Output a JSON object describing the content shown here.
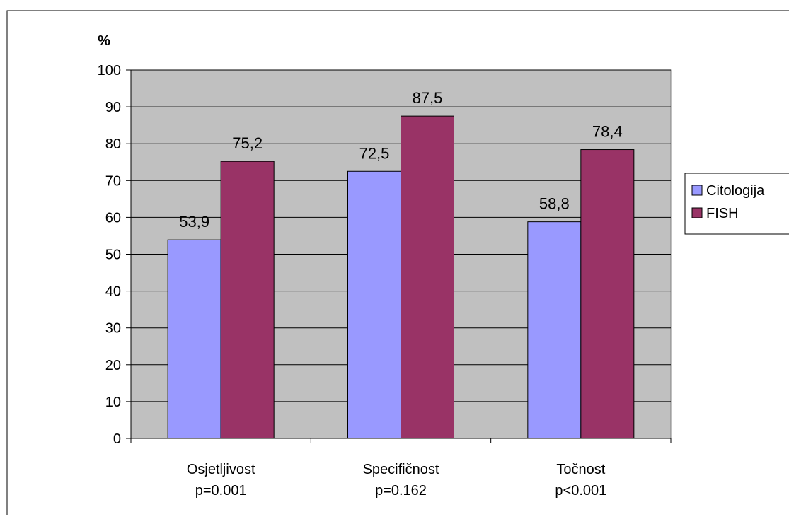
{
  "chart_data": {
    "type": "bar",
    "ylabel": "%",
    "ylim": [
      0,
      100
    ],
    "yticks": [
      0,
      10,
      20,
      30,
      40,
      50,
      60,
      70,
      80,
      90,
      100
    ],
    "grid": true,
    "legend_position": "right",
    "categories": [
      {
        "name": "Osjetljivost",
        "sub": "p=0.001"
      },
      {
        "name": "Specifičnost",
        "sub": "p=0.162"
      },
      {
        "name": "Točnost",
        "sub": "p<0.001"
      }
    ],
    "series": [
      {
        "name": "Citologija",
        "color": "#9999ff",
        "values": [
          53.9,
          72.5,
          58.8
        ],
        "labels": [
          "53,9",
          "72,5",
          "58,8"
        ]
      },
      {
        "name": "FISH",
        "color": "#993366",
        "values": [
          75.2,
          87.5,
          78.4
        ],
        "labels": [
          "75,2",
          "87,5",
          "78,4"
        ]
      }
    ],
    "plot_background": "#c0c0c0"
  }
}
